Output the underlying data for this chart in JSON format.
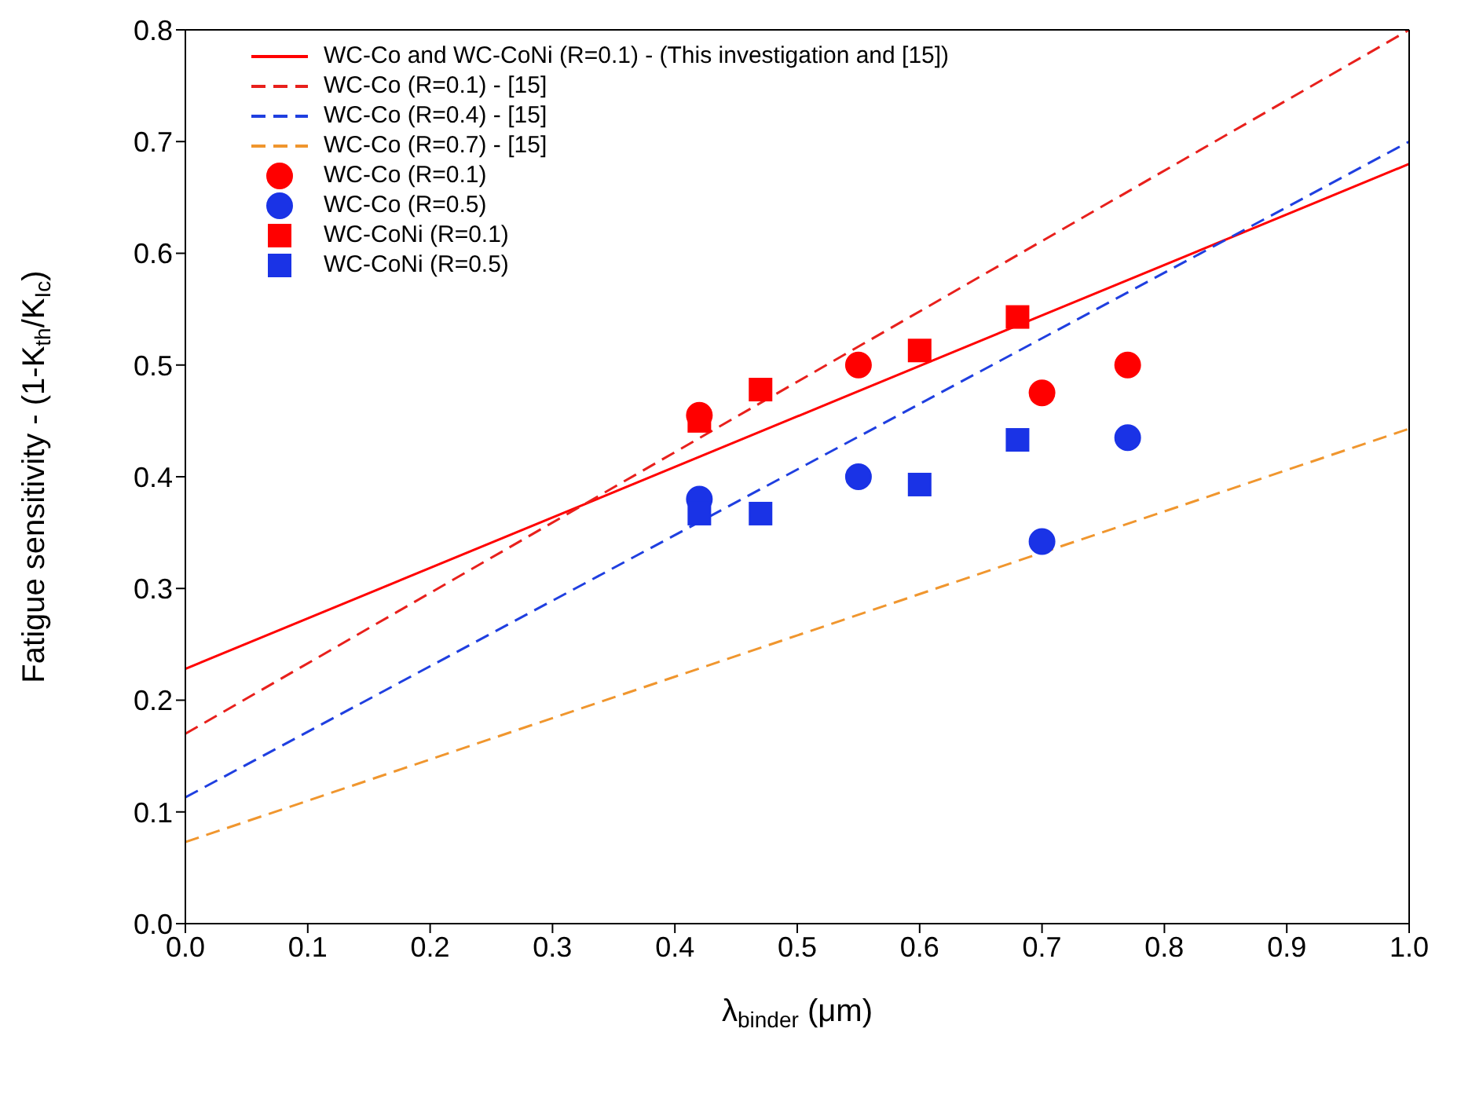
{
  "chart_data": {
    "type": "scatter",
    "xlabel": "λ$_{binder}$ (μm)",
    "ylabel": "Fatigue sensitivity - (1-K$_{th}$/K$_{Ic}$)",
    "xlim": [
      0,
      1
    ],
    "ylim": [
      0,
      0.8
    ],
    "xticks": [
      {
        "value": 0,
        "label": "0.0"
      },
      {
        "value": 0.1,
        "label": "0.1"
      },
      {
        "value": 0.2,
        "label": "0.2"
      },
      {
        "value": 0.3,
        "label": "0.3"
      },
      {
        "value": 0.4,
        "label": "0.4"
      },
      {
        "value": 0.5,
        "label": "0.5"
      },
      {
        "value": 0.6,
        "label": "0.6"
      },
      {
        "value": 0.7,
        "label": "0.7"
      },
      {
        "value": 0.8,
        "label": "0.8"
      },
      {
        "value": 0.9,
        "label": "0.9"
      },
      {
        "value": 1,
        "label": "1.0"
      }
    ],
    "yticks": [
      {
        "value": 0,
        "label": "0.0"
      },
      {
        "value": 0.1,
        "label": "0.1"
      },
      {
        "value": 0.2,
        "label": "0.2"
      },
      {
        "value": 0.3,
        "label": "0.3"
      },
      {
        "value": 0.4,
        "label": "0.4"
      },
      {
        "value": 0.5,
        "label": "0.5"
      },
      {
        "value": 0.6,
        "label": "0.6"
      },
      {
        "value": 0.7,
        "label": "0.7"
      },
      {
        "value": 0.8,
        "label": "0.8"
      }
    ],
    "legend": "top left",
    "series": [
      {
        "name": "WC-Co and WC-CoNi (R=0.1) - (This investigation and [15])",
        "type": "line",
        "line_style": "solid",
        "marker": "none",
        "color": "#ff0000",
        "x": [
          0,
          1
        ],
        "values": [
          0.228,
          0.68
        ]
      },
      {
        "name": "WC-Co (R=0.1) - [15]",
        "type": "line",
        "line_style": "dashed",
        "marker": "none",
        "color": "#e8201c",
        "x": [
          0,
          1
        ],
        "values": [
          0.17,
          0.8
        ]
      },
      {
        "name": "WC-Co (R=0.4) - [15]",
        "type": "line",
        "line_style": "dashed",
        "marker": "none",
        "color": "#1f3fe0",
        "x": [
          0,
          1
        ],
        "values": [
          0.113,
          0.7
        ]
      },
      {
        "name": "WC-Co (R=0.7) - [15]",
        "type": "line",
        "line_style": "dashed",
        "marker": "none",
        "color": "#f0962e",
        "x": [
          0,
          1
        ],
        "values": [
          0.073,
          0.443
        ]
      },
      {
        "name": "WC-Co (R=0.1)",
        "marker": "circle",
        "color": "#ff0000",
        "x": [
          0.42,
          0.55,
          0.7,
          0.77
        ],
        "values": [
          0.455,
          0.5,
          0.475,
          0.5
        ]
      },
      {
        "name": "WC-Co (R=0.5)",
        "marker": "circle",
        "color": "#1a33e6",
        "x": [
          0.42,
          0.55,
          0.7,
          0.77
        ],
        "values": [
          0.38,
          0.4,
          0.342,
          0.435
        ]
      },
      {
        "name": "WC-CoNi (R=0.1)",
        "marker": "square",
        "color": "#ff0000",
        "x": [
          0.42,
          0.47,
          0.6,
          0.68
        ],
        "values": [
          0.45,
          0.478,
          0.513,
          0.543
        ]
      },
      {
        "name": "WC-CoNi (R=0.5)",
        "marker": "square",
        "color": "#1a33e6",
        "x": [
          0.42,
          0.47,
          0.6,
          0.68
        ],
        "values": [
          0.367,
          0.367,
          0.393,
          0.433
        ]
      }
    ]
  }
}
